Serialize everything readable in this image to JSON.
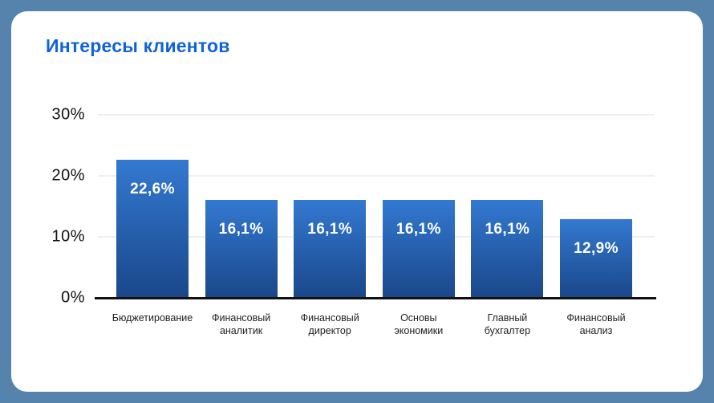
{
  "frame": {
    "background_color": "#5583AC",
    "card_background_color": "#FFFFFF"
  },
  "chart_data": {
    "type": "bar",
    "title": "Интересы клиентов",
    "title_color": "#0F63D6",
    "categories": [
      "Бюджетирование",
      "Финансовый\nаналитик",
      "Финансовый\nдиректор",
      "Основы\nэкономики",
      "Главный\nбухгалтер",
      "Финансовый\nанализ"
    ],
    "values": [
      22.6,
      16.1,
      16.1,
      16.1,
      16.1,
      12.9
    ],
    "value_labels": [
      "22,6%",
      "16,1%",
      "16,1%",
      "16,1%",
      "16,1%",
      "12,9%"
    ],
    "xlabel": "",
    "ylabel": "",
    "ylim": [
      0,
      30
    ],
    "y_ticks": [
      0,
      10,
      20,
      30
    ],
    "y_tick_labels": [
      "0%",
      "10%",
      "20%",
      "30%"
    ],
    "grid": true,
    "legend": false,
    "colors": {
      "bar_gradient_top": "#3379D1",
      "bar_gradient_bottom": "#1A478A",
      "gridline": "#EFEFEF",
      "axis_line": "#111111",
      "value_label": "#FFFFFF",
      "y_tick_label": "#111111",
      "category_label": "#222222"
    }
  }
}
